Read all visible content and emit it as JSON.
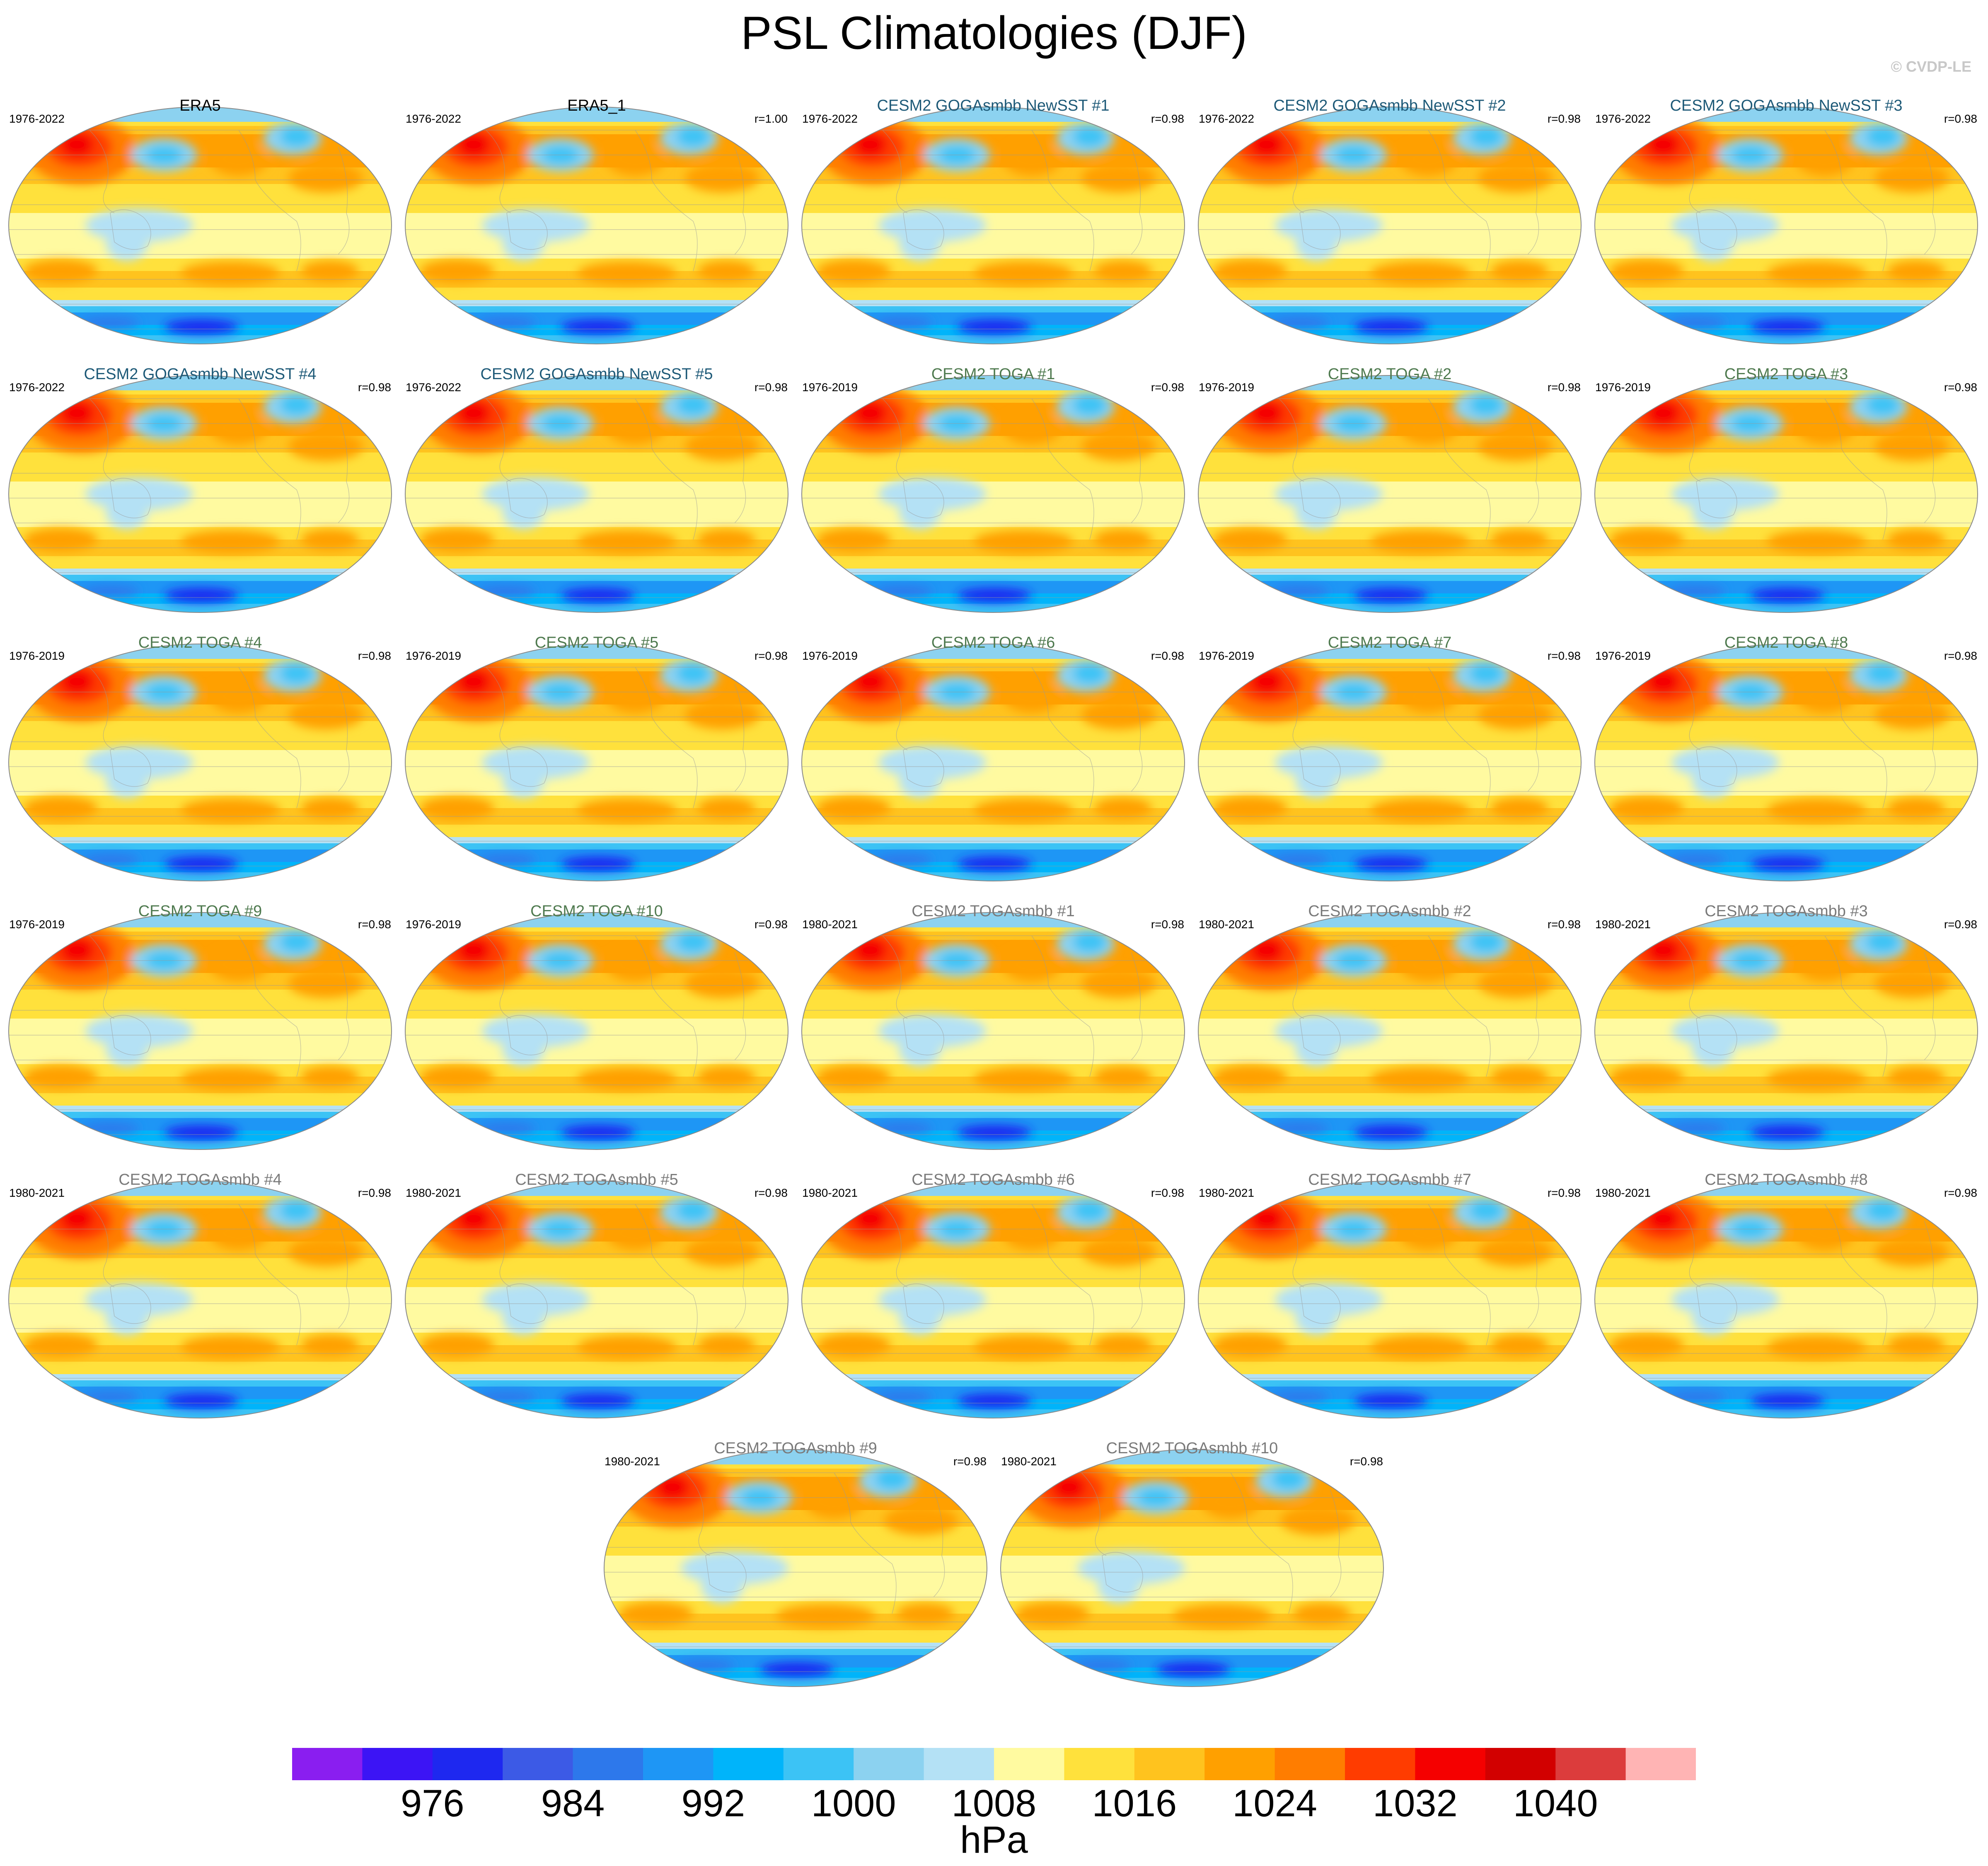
{
  "title": "PSL Climatologies (DJF)",
  "credit": "© CVDP-LE",
  "title_colors": {
    "obs": "#000000",
    "gogasst": "#1e5a78",
    "toga": "#4f7a4f",
    "togasmbb": "#7a7a7a"
  },
  "panels": [
    {
      "title": "ERA5",
      "years": "1976-2022",
      "r": "",
      "group": "obs"
    },
    {
      "title": "ERA5_1",
      "years": "1976-2022",
      "r": "r=1.00",
      "group": "obs"
    },
    {
      "title": "CESM2 GOGAsmbb NewSST #1",
      "years": "1976-2022",
      "r": "r=0.98",
      "group": "gogasst"
    },
    {
      "title": "CESM2 GOGAsmbb NewSST #2",
      "years": "1976-2022",
      "r": "r=0.98",
      "group": "gogasst"
    },
    {
      "title": "CESM2 GOGAsmbb NewSST #3",
      "years": "1976-2022",
      "r": "r=0.98",
      "group": "gogasst"
    },
    {
      "title": "CESM2 GOGAsmbb NewSST #4",
      "years": "1976-2022",
      "r": "r=0.98",
      "group": "gogasst"
    },
    {
      "title": "CESM2 GOGAsmbb NewSST #5",
      "years": "1976-2022",
      "r": "r=0.98",
      "group": "gogasst"
    },
    {
      "title": "CESM2 TOGA #1",
      "years": "1976-2019",
      "r": "r=0.98",
      "group": "toga"
    },
    {
      "title": "CESM2 TOGA #2",
      "years": "1976-2019",
      "r": "r=0.98",
      "group": "toga"
    },
    {
      "title": "CESM2 TOGA #3",
      "years": "1976-2019",
      "r": "r=0.98",
      "group": "toga"
    },
    {
      "title": "CESM2 TOGA #4",
      "years": "1976-2019",
      "r": "r=0.98",
      "group": "toga"
    },
    {
      "title": "CESM2 TOGA #5",
      "years": "1976-2019",
      "r": "r=0.98",
      "group": "toga"
    },
    {
      "title": "CESM2 TOGA #6",
      "years": "1976-2019",
      "r": "r=0.98",
      "group": "toga"
    },
    {
      "title": "CESM2 TOGA #7",
      "years": "1976-2019",
      "r": "r=0.98",
      "group": "toga"
    },
    {
      "title": "CESM2 TOGA #8",
      "years": "1976-2019",
      "r": "r=0.98",
      "group": "toga"
    },
    {
      "title": "CESM2 TOGA #9",
      "years": "1976-2019",
      "r": "r=0.98",
      "group": "toga"
    },
    {
      "title": "CESM2 TOGA #10",
      "years": "1976-2019",
      "r": "r=0.98",
      "group": "toga"
    },
    {
      "title": "CESM2 TOGAsmbb #1",
      "years": "1980-2021",
      "r": "r=0.98",
      "group": "togasmbb"
    },
    {
      "title": "CESM2 TOGAsmbb #2",
      "years": "1980-2021",
      "r": "r=0.98",
      "group": "togasmbb"
    },
    {
      "title": "CESM2 TOGAsmbb #3",
      "years": "1980-2021",
      "r": "r=0.98",
      "group": "togasmbb"
    },
    {
      "title": "CESM2 TOGAsmbb #4",
      "years": "1980-2021",
      "r": "r=0.98",
      "group": "togasmbb"
    },
    {
      "title": "CESM2 TOGAsmbb #5",
      "years": "1980-2021",
      "r": "r=0.98",
      "group": "togasmbb"
    },
    {
      "title": "CESM2 TOGAsmbb #6",
      "years": "1980-2021",
      "r": "r=0.98",
      "group": "togasmbb"
    },
    {
      "title": "CESM2 TOGAsmbb #7",
      "years": "1980-2021",
      "r": "r=0.98",
      "group": "togasmbb"
    },
    {
      "title": "CESM2 TOGAsmbb #8",
      "years": "1980-2021",
      "r": "r=0.98",
      "group": "togasmbb"
    },
    {
      "title": "CESM2 TOGAsmbb #9",
      "years": "1980-2021",
      "r": "r=0.98",
      "group": "togasmbb"
    },
    {
      "title": "CESM2 TOGAsmbb #10",
      "years": "1980-2021",
      "r": "r=0.98",
      "group": "togasmbb"
    }
  ],
  "colorbar": {
    "colors": [
      "#8a1ef0",
      "#3c14f5",
      "#1e28f0",
      "#3c5ae6",
      "#2d78eb",
      "#1e96f5",
      "#00b4fa",
      "#3cc3f5",
      "#8cd2f0",
      "#b4e1f5",
      "#fffaa0",
      "#ffe13c",
      "#ffc31e",
      "#ffa000",
      "#ff7d00",
      "#ff3c00",
      "#f50000",
      "#d20000",
      "#dc3c3c",
      "#ffb4b4"
    ],
    "labels": [
      "976",
      "984",
      "992",
      "1000",
      "1008",
      "1016",
      "1024",
      "1032",
      "1040"
    ],
    "units": "hPa"
  }
}
